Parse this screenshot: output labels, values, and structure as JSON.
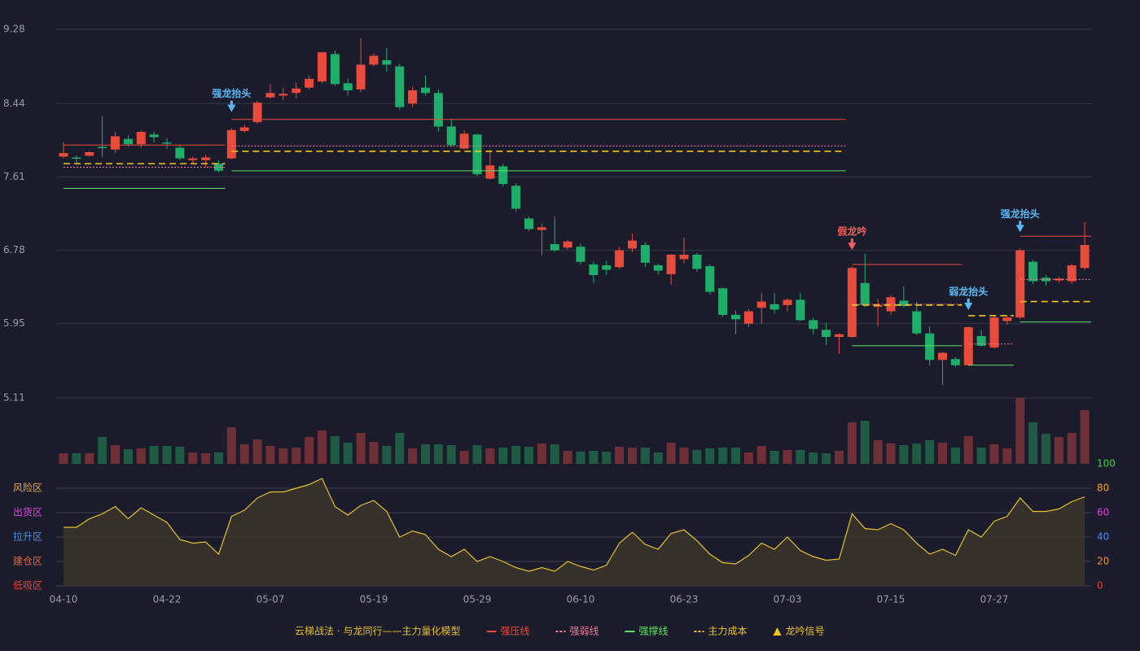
{
  "chart_data": [
    {
      "type": "candlestick",
      "categories": [
        "04-10",
        null,
        null,
        null,
        null,
        null,
        null,
        null,
        "04-22",
        null,
        null,
        null,
        null,
        null,
        null,
        null,
        "05-07",
        null,
        null,
        null,
        null,
        null,
        null,
        null,
        "05-19",
        null,
        null,
        null,
        null,
        null,
        null,
        null,
        "05-29",
        null,
        null,
        null,
        null,
        null,
        null,
        null,
        "06-10",
        null,
        null,
        null,
        null,
        null,
        null,
        null,
        "06-23",
        null,
        null,
        null,
        null,
        null,
        null,
        null,
        "07-03",
        null,
        null,
        null,
        null,
        null,
        null,
        null,
        "07-15",
        null,
        null,
        null,
        null,
        null,
        null,
        null,
        "07-27",
        null,
        null,
        null,
        null,
        null,
        null,
        null
      ],
      "open": [
        7.84,
        7.83,
        7.85,
        7.95,
        7.92,
        8.04,
        7.98,
        8.09,
        8.0,
        7.94,
        7.8,
        7.8,
        7.76,
        7.82,
        8.13,
        8.23,
        8.51,
        8.53,
        8.56,
        8.62,
        8.69,
        9.0,
        8.67,
        8.6,
        8.88,
        8.93,
        8.86,
        8.44,
        8.62,
        8.56,
        8.18,
        7.93,
        8.09,
        7.59,
        7.73,
        7.51,
        7.14,
        7.01,
        6.85,
        6.81,
        6.82,
        6.62,
        6.61,
        6.59,
        6.8,
        6.84,
        6.61,
        6.51,
        6.68,
        6.73,
        6.6,
        6.35,
        6.05,
        5.95,
        6.13,
        6.17,
        6.16,
        6.22,
        5.99,
        5.88,
        5.8,
        5.8,
        6.41,
        6.14,
        6.09,
        6.21,
        6.09,
        5.84,
        5.54,
        5.55,
        5.48,
        5.81,
        5.68,
        5.98,
        6.02,
        6.65,
        6.47,
        6.44,
        6.43,
        6.58
      ],
      "close": [
        7.88,
        7.82,
        7.89,
        7.94,
        8.07,
        7.98,
        8.12,
        8.06,
        7.99,
        7.82,
        7.82,
        7.83,
        7.68,
        8.14,
        8.17,
        8.45,
        8.56,
        8.55,
        8.61,
        8.72,
        9.02,
        8.66,
        8.59,
        8.88,
        8.98,
        8.88,
        8.4,
        8.59,
        8.56,
        8.18,
        7.97,
        8.1,
        7.64,
        7.74,
        7.53,
        7.25,
        7.02,
        7.04,
        6.78,
        6.88,
        6.65,
        6.5,
        6.56,
        6.78,
        6.89,
        6.64,
        6.55,
        6.73,
        6.73,
        6.57,
        6.31,
        6.05,
        6.0,
        6.09,
        6.2,
        6.11,
        6.22,
        5.99,
        5.89,
        5.8,
        5.83,
        6.58,
        6.16,
        6.16,
        6.25,
        6.15,
        5.84,
        5.54,
        5.62,
        5.48,
        5.91,
        5.7,
        6.02,
        6.02,
        6.78,
        6.43,
        6.43,
        6.46,
        6.61,
        6.84
      ],
      "high": [
        8.0,
        7.85,
        7.9,
        8.29,
        8.12,
        8.08,
        8.14,
        8.12,
        8.05,
        7.97,
        7.84,
        7.86,
        7.8,
        8.16,
        8.2,
        8.47,
        8.66,
        8.62,
        8.68,
        8.76,
        9.02,
        9.04,
        8.72,
        9.18,
        9.01,
        9.07,
        8.89,
        8.63,
        8.76,
        8.6,
        8.27,
        8.14,
        8.1,
        7.92,
        7.76,
        7.54,
        7.16,
        7.08,
        7.16,
        6.9,
        6.86,
        6.65,
        6.66,
        6.82,
        6.97,
        6.87,
        6.63,
        6.74,
        6.92,
        6.75,
        6.62,
        6.36,
        6.1,
        6.12,
        6.3,
        6.3,
        6.24,
        6.3,
        6.02,
        5.96,
        5.84,
        6.6,
        6.74,
        6.23,
        6.27,
        6.37,
        6.2,
        5.92,
        5.63,
        5.57,
        5.92,
        5.88,
        6.04,
        6.05,
        6.8,
        6.67,
        6.5,
        6.48,
        6.62,
        7.1
      ],
      "low": [
        7.82,
        7.76,
        7.84,
        7.84,
        7.88,
        7.95,
        7.94,
        8.0,
        7.93,
        7.8,
        7.77,
        7.72,
        7.66,
        7.81,
        8.11,
        8.21,
        8.5,
        8.48,
        8.5,
        8.6,
        8.67,
        8.64,
        8.53,
        8.57,
        8.86,
        8.8,
        8.37,
        8.4,
        8.53,
        8.12,
        7.95,
        7.92,
        7.62,
        7.58,
        7.5,
        7.22,
        7.0,
        6.72,
        6.76,
        6.79,
        6.62,
        6.41,
        6.5,
        6.57,
        6.76,
        6.59,
        6.51,
        6.39,
        6.63,
        6.54,
        6.28,
        6.03,
        5.83,
        5.91,
        5.95,
        6.06,
        6.09,
        5.98,
        5.83,
        5.71,
        5.61,
        5.79,
        6.14,
        5.92,
        6.05,
        6.13,
        5.82,
        5.48,
        5.26,
        5.46,
        5.47,
        5.69,
        5.67,
        5.94,
        6.0,
        6.4,
        6.38,
        6.41,
        6.4,
        6.56
      ],
      "up_color": "#e84a3c",
      "down_color": "#1fae6a",
      "ylim": [
        5.11,
        9.28
      ],
      "yticks": [
        5.11,
        5.95,
        6.78,
        7.61,
        8.44,
        9.28
      ],
      "grid": true,
      "levels": [
        {
          "name": "强压线",
          "color": "#e84a3c",
          "style": "solid",
          "segments": [
            {
              "from": 0,
              "to": 12,
              "value": 7.97
            },
            {
              "from": 13,
              "to": 60,
              "value": 8.26
            },
            {
              "from": 61,
              "to": 69,
              "value": 6.62
            },
            {
              "from": 74,
              "to": 79,
              "value": 6.94
            }
          ]
        },
        {
          "name": "强弱线",
          "color": "#f07a9a",
          "style": "dotted",
          "segments": [
            {
              "from": 0,
              "to": 12,
              "value": 7.72
            },
            {
              "from": 13,
              "to": 60,
              "value": 7.96
            },
            {
              "from": 61,
              "to": 69,
              "value": 6.17
            },
            {
              "from": 70,
              "to": 73,
              "value": 5.72
            },
            {
              "from": 74,
              "to": 79,
              "value": 6.45
            }
          ]
        },
        {
          "name": "强撑线",
          "color": "#5ee06a",
          "style": "solid",
          "segments": [
            {
              "from": 0,
              "to": 12,
              "value": 7.48
            },
            {
              "from": 13,
              "to": 60,
              "value": 7.68
            },
            {
              "from": 61,
              "to": 69,
              "value": 5.7
            },
            {
              "from": 70,
              "to": 73,
              "value": 5.48
            },
            {
              "from": 74,
              "to": 79,
              "value": 5.97
            }
          ]
        },
        {
          "name": "主力成本",
          "color": "#f5c518",
          "style": "dashed",
          "segments": [
            {
              "from": 0,
              "to": 12,
              "value": 7.76
            },
            {
              "from": 13,
              "to": 60,
              "value": 7.9
            },
            {
              "from": 61,
              "to": 69,
              "value": 6.16
            },
            {
              "from": 70,
              "to": 73,
              "value": 6.04
            },
            {
              "from": 74,
              "to": 79,
              "value": 6.2
            }
          ]
        }
      ],
      "signals": [
        {
          "label": "强龙抬头",
          "index": 13,
          "color": "#5ab8f5"
        },
        {
          "label": "假龙吟",
          "index": 61,
          "color": "#f0605a"
        },
        {
          "label": "弱龙抬头",
          "index": 70,
          "color": "#5ab8f5"
        },
        {
          "label": "强龙抬头",
          "index": 74,
          "color": "#5ab8f5"
        }
      ],
      "legend": {
        "title": "云梯战法 · 与龙同行——主力量化模型",
        "signal": "龙吟信号",
        "signal_color": "#f5c518"
      }
    },
    {
      "type": "volume",
      "values": [
        13,
        13,
        13,
        33,
        23,
        18,
        19,
        22,
        22,
        21,
        14,
        13,
        14,
        45,
        24,
        30,
        22,
        19,
        20,
        33,
        41,
        34,
        26,
        38,
        27,
        22,
        38,
        19,
        24,
        24,
        23,
        16,
        23,
        19,
        20,
        22,
        21,
        25,
        24,
        16,
        15,
        16,
        15,
        21,
        20,
        20,
        14,
        26,
        20,
        17,
        19,
        20,
        20,
        14,
        22,
        16,
        17,
        17,
        14,
        13,
        16,
        51,
        53,
        29,
        25,
        23,
        25,
        29,
        26,
        20,
        34,
        20,
        24,
        19,
        81,
        51,
        37,
        33,
        38,
        66
      ],
      "up_color": "#6e2f37",
      "down_color": "#1f5a44"
    },
    {
      "type": "line",
      "values": [
        48,
        48,
        55,
        59,
        65,
        55,
        64,
        58,
        52,
        38,
        35,
        36,
        26,
        57,
        62,
        72,
        77,
        77,
        80,
        83,
        88,
        65,
        58,
        66,
        70,
        61,
        40,
        45,
        42,
        30,
        24,
        30,
        20,
        24,
        20,
        15,
        12,
        15,
        12,
        20,
        16,
        13,
        17,
        35,
        44,
        34,
        30,
        43,
        46,
        37,
        26,
        19,
        18,
        25,
        35,
        30,
        40,
        29,
        24,
        21,
        22,
        59,
        47,
        46,
        51,
        46,
        35,
        26,
        30,
        25,
        46,
        40,
        53,
        57,
        72,
        61,
        61,
        63,
        69,
        73
      ],
      "color": "#e6c229",
      "fill": "#3a3429",
      "ylim": [
        0,
        100
      ],
      "yticks": [
        0,
        20,
        40,
        60,
        80,
        100
      ],
      "ytick_colors": [
        "#e8403a",
        "#e8903a",
        "#4a8fe8",
        "#e040e0",
        "#f0a030",
        "#3fd04a"
      ],
      "zones": [
        {
          "label": "风险区",
          "value": 80,
          "color": "#f0a030"
        },
        {
          "label": "出货区",
          "value": 60,
          "color": "#e040e0"
        },
        {
          "label": "拉升区",
          "value": 40,
          "color": "#4a8fe8"
        },
        {
          "label": "建仓区",
          "value": 20,
          "color": "#e8603a"
        },
        {
          "label": "低吸区",
          "value": 0,
          "color": "#e8403a"
        }
      ]
    }
  ]
}
